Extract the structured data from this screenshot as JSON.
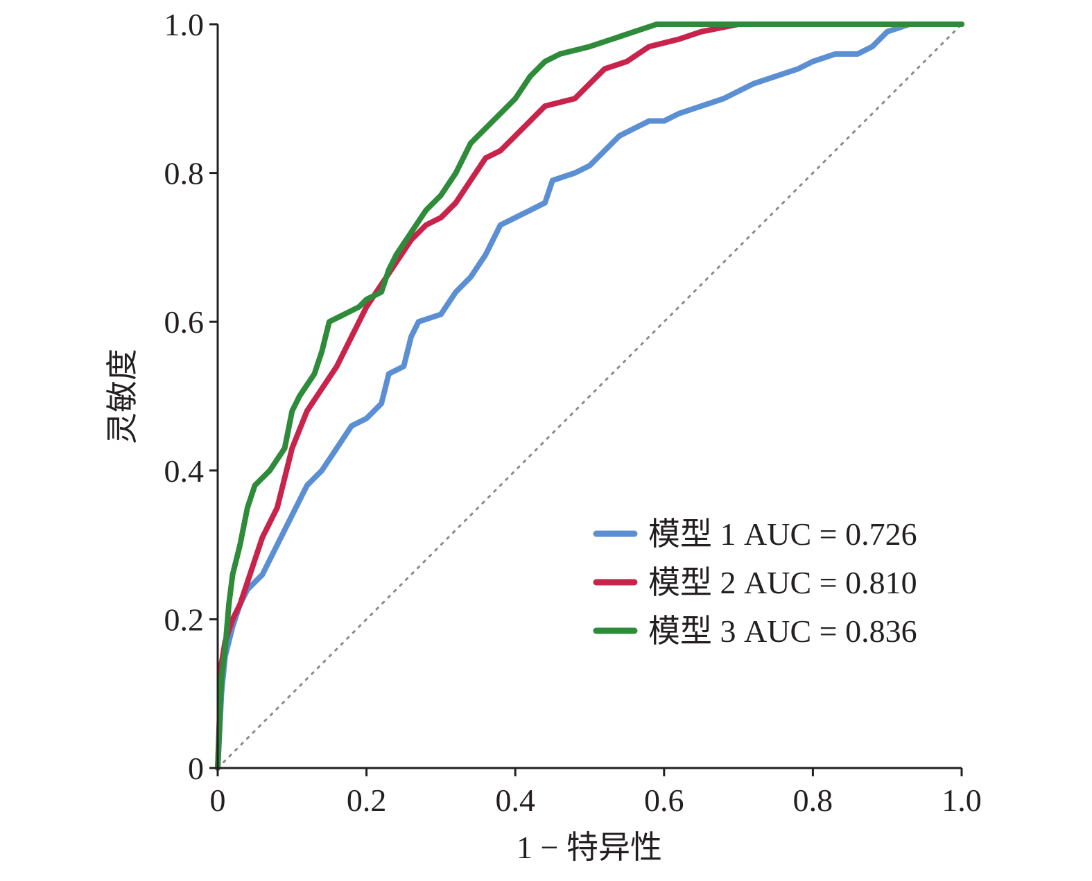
{
  "chart_data": {
    "type": "line",
    "title": "",
    "xlabel": "1 − 特异性",
    "ylabel": "灵敏度",
    "xlim": [
      0,
      1.0
    ],
    "ylim": [
      0,
      1.0
    ],
    "x_ticks": [
      "0",
      "0.2",
      "0.4",
      "0.6",
      "0.8",
      "1.0"
    ],
    "y_ticks": [
      "0",
      "0.2",
      "0.4",
      "0.6",
      "0.8",
      "1.0"
    ],
    "x_tick_values": [
      0,
      0.2,
      0.4,
      0.6,
      0.8,
      1.0
    ],
    "y_tick_values": [
      0,
      0.2,
      0.4,
      0.6,
      0.8,
      1.0
    ],
    "grid": false,
    "legend_position": "lower-right",
    "reference_line": {
      "from": [
        0,
        0
      ],
      "to": [
        1,
        1
      ],
      "style": "dotted",
      "color": "#8a8a8a"
    },
    "series": [
      {
        "name": "模型 1 AUC = 0.726",
        "color": "#5b8fd4",
        "points": [
          [
            0,
            0
          ],
          [
            0.005,
            0.1
          ],
          [
            0.01,
            0.15
          ],
          [
            0.02,
            0.19
          ],
          [
            0.03,
            0.22
          ],
          [
            0.04,
            0.24
          ],
          [
            0.06,
            0.26
          ],
          [
            0.08,
            0.3
          ],
          [
            0.1,
            0.34
          ],
          [
            0.12,
            0.38
          ],
          [
            0.14,
            0.4
          ],
          [
            0.16,
            0.43
          ],
          [
            0.18,
            0.46
          ],
          [
            0.2,
            0.47
          ],
          [
            0.22,
            0.49
          ],
          [
            0.23,
            0.53
          ],
          [
            0.25,
            0.54
          ],
          [
            0.26,
            0.58
          ],
          [
            0.27,
            0.6
          ],
          [
            0.3,
            0.61
          ],
          [
            0.32,
            0.64
          ],
          [
            0.34,
            0.66
          ],
          [
            0.36,
            0.69
          ],
          [
            0.38,
            0.73
          ],
          [
            0.4,
            0.74
          ],
          [
            0.42,
            0.75
          ],
          [
            0.44,
            0.76
          ],
          [
            0.45,
            0.79
          ],
          [
            0.48,
            0.8
          ],
          [
            0.5,
            0.81
          ],
          [
            0.52,
            0.83
          ],
          [
            0.54,
            0.85
          ],
          [
            0.56,
            0.86
          ],
          [
            0.58,
            0.87
          ],
          [
            0.6,
            0.87
          ],
          [
            0.62,
            0.88
          ],
          [
            0.65,
            0.89
          ],
          [
            0.68,
            0.9
          ],
          [
            0.7,
            0.91
          ],
          [
            0.72,
            0.92
          ],
          [
            0.75,
            0.93
          ],
          [
            0.78,
            0.94
          ],
          [
            0.8,
            0.95
          ],
          [
            0.83,
            0.96
          ],
          [
            0.86,
            0.96
          ],
          [
            0.88,
            0.97
          ],
          [
            0.9,
            0.99
          ],
          [
            0.93,
            1.0
          ],
          [
            1.0,
            1.0
          ]
        ]
      },
      {
        "name": "模型 2 AUC = 0.810",
        "color": "#c8234a",
        "points": [
          [
            0,
            0
          ],
          [
            0.005,
            0.14
          ],
          [
            0.01,
            0.17
          ],
          [
            0.02,
            0.2
          ],
          [
            0.03,
            0.22
          ],
          [
            0.04,
            0.25
          ],
          [
            0.05,
            0.28
          ],
          [
            0.06,
            0.31
          ],
          [
            0.08,
            0.35
          ],
          [
            0.09,
            0.39
          ],
          [
            0.1,
            0.43
          ],
          [
            0.12,
            0.48
          ],
          [
            0.14,
            0.51
          ],
          [
            0.16,
            0.54
          ],
          [
            0.18,
            0.58
          ],
          [
            0.2,
            0.62
          ],
          [
            0.22,
            0.65
          ],
          [
            0.24,
            0.68
          ],
          [
            0.26,
            0.71
          ],
          [
            0.28,
            0.73
          ],
          [
            0.3,
            0.74
          ],
          [
            0.32,
            0.76
          ],
          [
            0.34,
            0.79
          ],
          [
            0.36,
            0.82
          ],
          [
            0.38,
            0.83
          ],
          [
            0.4,
            0.85
          ],
          [
            0.42,
            0.87
          ],
          [
            0.44,
            0.89
          ],
          [
            0.48,
            0.9
          ],
          [
            0.5,
            0.92
          ],
          [
            0.52,
            0.94
          ],
          [
            0.55,
            0.95
          ],
          [
            0.58,
            0.97
          ],
          [
            0.62,
            0.98
          ],
          [
            0.65,
            0.99
          ],
          [
            0.7,
            1.0
          ],
          [
            0.78,
            1.0
          ],
          [
            1.0,
            1.0
          ]
        ]
      },
      {
        "name": "模型 3 AUC = 0.836",
        "color": "#2e8b3a",
        "points": [
          [
            0,
            0
          ],
          [
            0.005,
            0.12
          ],
          [
            0.01,
            0.16
          ],
          [
            0.015,
            0.22
          ],
          [
            0.02,
            0.26
          ],
          [
            0.03,
            0.3
          ],
          [
            0.04,
            0.35
          ],
          [
            0.05,
            0.38
          ],
          [
            0.07,
            0.4
          ],
          [
            0.09,
            0.43
          ],
          [
            0.1,
            0.48
          ],
          [
            0.11,
            0.5
          ],
          [
            0.13,
            0.53
          ],
          [
            0.14,
            0.56
          ],
          [
            0.15,
            0.6
          ],
          [
            0.17,
            0.61
          ],
          [
            0.19,
            0.62
          ],
          [
            0.2,
            0.63
          ],
          [
            0.22,
            0.64
          ],
          [
            0.23,
            0.67
          ],
          [
            0.24,
            0.69
          ],
          [
            0.26,
            0.72
          ],
          [
            0.28,
            0.75
          ],
          [
            0.3,
            0.77
          ],
          [
            0.32,
            0.8
          ],
          [
            0.34,
            0.84
          ],
          [
            0.36,
            0.86
          ],
          [
            0.38,
            0.88
          ],
          [
            0.4,
            0.9
          ],
          [
            0.42,
            0.93
          ],
          [
            0.44,
            0.95
          ],
          [
            0.46,
            0.96
          ],
          [
            0.5,
            0.97
          ],
          [
            0.53,
            0.98
          ],
          [
            0.56,
            0.99
          ],
          [
            0.59,
            1.0
          ],
          [
            0.7,
            1.0
          ],
          [
            1.0,
            1.0
          ]
        ]
      }
    ]
  }
}
